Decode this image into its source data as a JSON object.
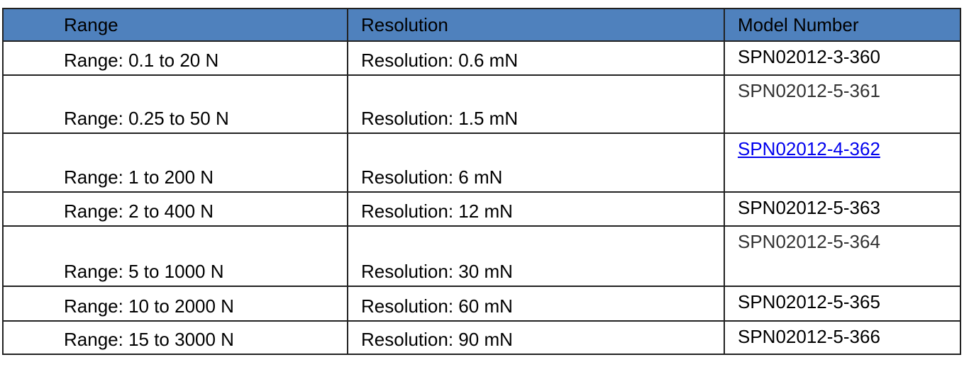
{
  "header": {
    "range": "Range",
    "resolution": "Resolution",
    "model": "Model Number",
    "bg_color": "#4f81bd"
  },
  "rows": [
    {
      "range": "Range: 0.1 to 20 N",
      "resolution": "Resolution: 0.6 mN",
      "model": "SPN02012-3-360"
    },
    {
      "range": "Range: 0.25 to 50 N",
      "resolution": "Resolution: 1.5 mN",
      "model": "SPN02012-5-361"
    },
    {
      "range": "Range: 1 to 200 N",
      "resolution": "Resolution: 6 mN",
      "model": "SPN02012-4-362",
      "link": true
    },
    {
      "range": "Range: 2 to 400 N",
      "resolution": "Resolution: 12 mN",
      "model": "SPN02012-5-363"
    },
    {
      "range": "Range: 5 to 1000 N",
      "resolution": "Resolution: 30 mN",
      "model": "SPN02012-5-364"
    },
    {
      "range": "Range: 10 to 2000 N",
      "resolution": "Resolution: 60 mN",
      "model": "SPN02012-5-365"
    },
    {
      "range": "Range: 15 to 3000 N",
      "resolution": "Resolution: 90 mN",
      "model": "SPN02012-5-366"
    }
  ]
}
